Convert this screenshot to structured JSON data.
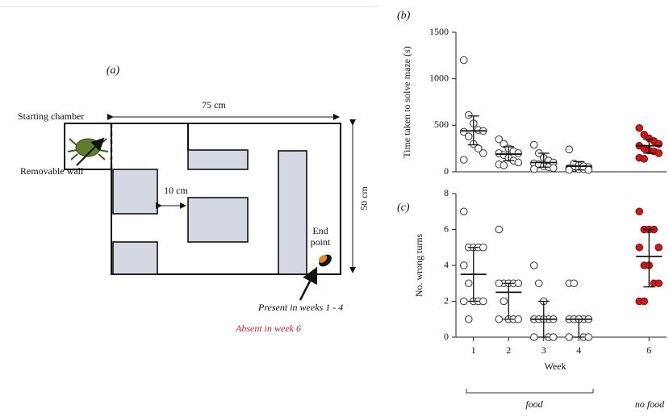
{
  "diagram": {
    "label": "(a)",
    "starting_chamber": "Starting chamber",
    "width_label": "75 cm",
    "height_label": "50 cm",
    "gap_label": "10 cm",
    "removable_wall": "Removable wall",
    "end_point": [
      "End",
      "point"
    ],
    "present": "Present in weeks 1 - 4",
    "absent": "Absent in week 6"
  },
  "chart_data": [
    {
      "type": "scatter",
      "label": "(b)",
      "y_label": "Time taken to solve maze (s)",
      "xlim": [
        0.5,
        6.5
      ],
      "ylim": [
        0,
        1500
      ],
      "yticks": [
        0,
        500,
        1000,
        1500
      ],
      "series": [
        {
          "x": 1,
          "color": "#ffffff",
          "values": [
            1200,
            610,
            520,
            450,
            440,
            430,
            380,
            300,
            250,
            200,
            130
          ],
          "summary": {
            "center": 440,
            "low": 290,
            "high": 600
          }
        },
        {
          "x": 2,
          "color": "#ffffff",
          "values": [
            350,
            300,
            250,
            220,
            200,
            200,
            180,
            150,
            120,
            100,
            80,
            70
          ],
          "summary": {
            "center": 190,
            "low": 120,
            "high": 270
          }
        },
        {
          "x": 3,
          "color": "#ffffff",
          "values": [
            290,
            200,
            150,
            120,
            100,
            90,
            80,
            60,
            50,
            40,
            30
          ],
          "summary": {
            "center": 100,
            "low": 50,
            "high": 200
          }
        },
        {
          "x": 4,
          "color": "#ffffff",
          "values": [
            240,
            90,
            70,
            60,
            50,
            40,
            40,
            30,
            30,
            20,
            20
          ],
          "summary": {
            "center": 60,
            "low": 20,
            "high": 110
          }
        },
        {
          "x": 6,
          "color": "#cc1a1a",
          "values": [
            470,
            400,
            360,
            330,
            300,
            280,
            250,
            230,
            220,
            200,
            150,
            140
          ],
          "summary": {
            "center": 280,
            "low": 200,
            "high": 350
          }
        }
      ]
    },
    {
      "type": "scatter",
      "label": "(c)",
      "y_label": "No. wrong turns",
      "x_label": "Week",
      "xlim": [
        0.5,
        6.5
      ],
      "ylim": [
        0,
        8
      ],
      "yticks": [
        0,
        2,
        4,
        6,
        8
      ],
      "xticks": [
        1,
        2,
        3,
        4,
        6
      ],
      "annotations": [
        "food",
        "no food"
      ],
      "series": [
        {
          "x": 1,
          "color": "#ffffff",
          "values": [
            7,
            5,
            5,
            5,
            5,
            4,
            3,
            2,
            2,
            2,
            2,
            1
          ],
          "summary": {
            "center": 3.5,
            "low": 2,
            "high": 5
          }
        },
        {
          "x": 2,
          "color": "#ffffff",
          "values": [
            6,
            3,
            3,
            3,
            3,
            3,
            2,
            1,
            1,
            1,
            1
          ],
          "summary": {
            "center": 2.5,
            "low": 1,
            "high": 3
          }
        },
        {
          "x": 3,
          "color": "#ffffff",
          "values": [
            4,
            3,
            2,
            1,
            1,
            1,
            1,
            1,
            0,
            0,
            0
          ],
          "summary": {
            "center": 1,
            "low": 0,
            "high": 2
          }
        },
        {
          "x": 4,
          "color": "#ffffff",
          "values": [
            3,
            3,
            1,
            1,
            1,
            1,
            1,
            1,
            0,
            0,
            0
          ],
          "summary": {
            "center": 1,
            "low": 0,
            "high": 1
          }
        },
        {
          "x": 6,
          "color": "#cc1a1a",
          "values": [
            7,
            6,
            6,
            6,
            5,
            5,
            4,
            4,
            3,
            3,
            2,
            2
          ],
          "summary": {
            "center": 4.5,
            "low": 2.8,
            "high": 6
          }
        }
      ]
    }
  ]
}
